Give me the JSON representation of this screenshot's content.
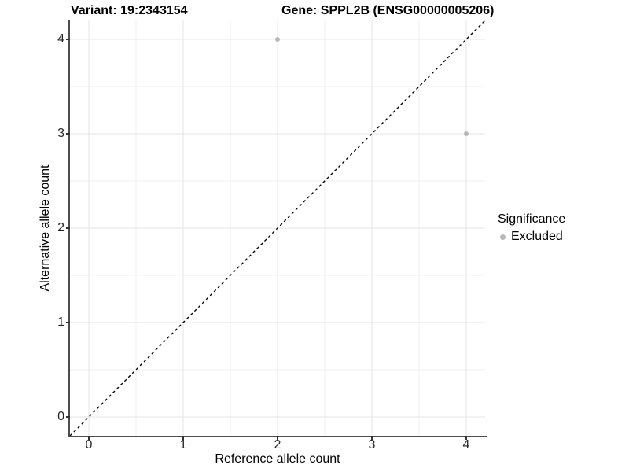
{
  "header": {
    "variant_title": "Variant: 19:2343154",
    "gene_title": "Gene: SPPL2B (ENSG00000005206)"
  },
  "axes": {
    "x_label": "Reference allele count",
    "y_label": "Alternative allele count"
  },
  "legend": {
    "title": "Significance",
    "items": [
      {
        "label": "Excluded",
        "color": "#b8b8b8"
      }
    ]
  },
  "chart_data": {
    "type": "scatter",
    "title": "Variant: 19:2343154 — Gene: SPPL2B (ENSG00000005206)",
    "xlabel": "Reference allele count",
    "ylabel": "Alternative allele count",
    "xlim": [
      -0.2,
      4.2
    ],
    "ylim": [
      -0.2,
      4.2
    ],
    "x_ticks": [
      0,
      1,
      2,
      3,
      4
    ],
    "y_ticks": [
      0,
      1,
      2,
      3,
      4
    ],
    "minor_gridlines": [
      0.5,
      1.5,
      2.5,
      3.5
    ],
    "grid": "major+minor",
    "legend_position": "right-middle",
    "series": [
      {
        "name": "Excluded",
        "color": "#b8b8b8",
        "points": [
          [
            2,
            4
          ],
          [
            4,
            3
          ]
        ]
      }
    ],
    "reference_line": {
      "type": "identity y=x",
      "style": "dashed",
      "color": "#000000"
    }
  },
  "colors": {
    "background": "#ffffff",
    "axis_line": "#4d4d4d",
    "tick": "#333333",
    "tick_label": "#262626",
    "grid_major": "#e4e4e4",
    "grid_minor": "#efefef",
    "point": "#b8b8b8",
    "diagonal": "#000000"
  }
}
